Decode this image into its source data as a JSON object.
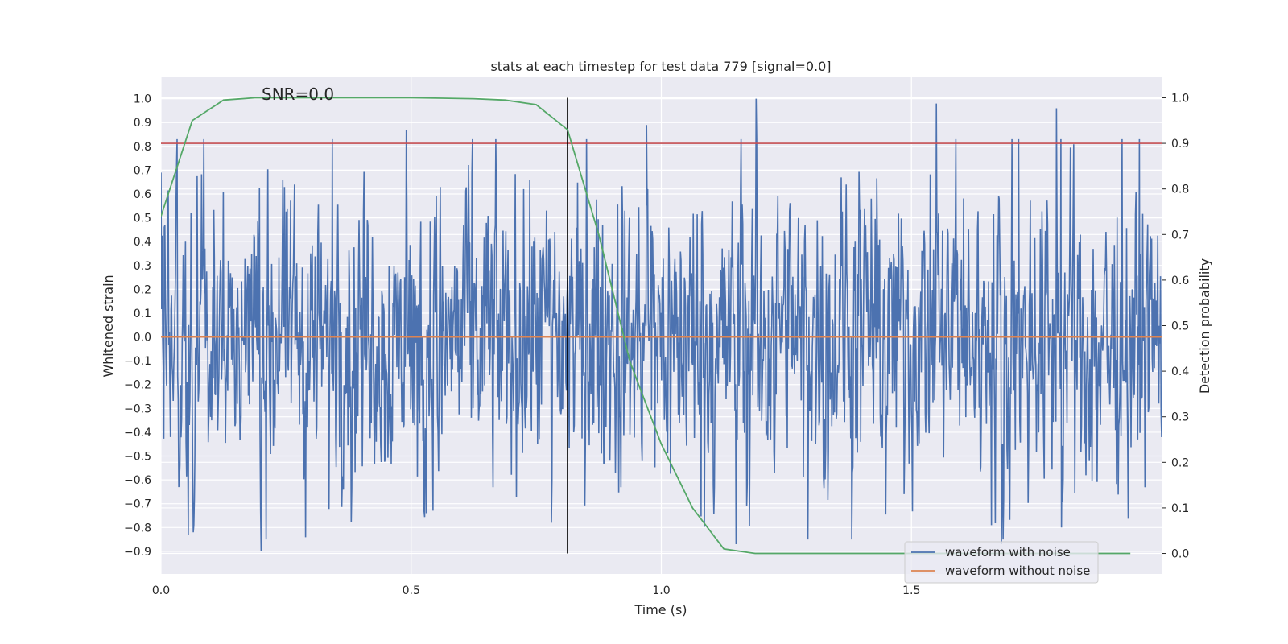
{
  "chart_data": {
    "type": "line",
    "title": "stats at each timestep for test data 779 [signal=0.0]",
    "xlabel": "Time (s)",
    "ylabel_left": "Whitened strain",
    "ylabel_right": "Detection probability",
    "annotation": "SNR=0.0",
    "xlim": [
      0.0,
      2.0
    ],
    "ylim_left": [
      -0.995,
      1.09
    ],
    "ylim_right": [
      -0.045,
      1.045
    ],
    "x_ticks": [
      0.0,
      0.5,
      1.0,
      1.5
    ],
    "x_tick_labels": [
      "0.0",
      "0.5",
      "1.0",
      "1.5"
    ],
    "y_left_ticks": [
      1.0,
      0.9,
      0.8,
      0.7,
      0.6,
      0.5,
      0.4,
      0.3,
      0.2,
      0.1,
      0.0,
      -0.1,
      -0.2,
      -0.3,
      -0.4,
      -0.5,
      -0.6,
      -0.7,
      -0.8,
      -0.9
    ],
    "y_left_tick_labels": [
      "1.0",
      "0.9",
      "0.8",
      "0.7",
      "0.6",
      "0.5",
      "0.4",
      "0.3",
      "0.2",
      "0.1",
      "0.0",
      "−0.1",
      "−0.2",
      "−0.3",
      "−0.4",
      "−0.5",
      "−0.6",
      "−0.7",
      "−0.8",
      "−0.9"
    ],
    "y_right_ticks": [
      1.0,
      0.9,
      0.8,
      0.7,
      0.6,
      0.5,
      0.4,
      0.3,
      0.2,
      0.1,
      0.0
    ],
    "y_right_tick_labels": [
      "1.0",
      "0.9",
      "0.8",
      "0.7",
      "0.6",
      "0.5",
      "0.4",
      "0.3",
      "0.2",
      "0.1",
      "0.0"
    ],
    "grid": true,
    "legend_position": "lower-right",
    "series": [
      {
        "name": "waveform with noise",
        "axis": "left",
        "color": "#4c72b0",
        "kind": "noise",
        "x_range": [
          0.0,
          2.0
        ],
        "amplitude_range": [
          -0.9,
          1.0
        ],
        "peaks": [
          {
            "x": 0.0,
            "y": 0.69
          },
          {
            "x": 0.065,
            "y": -0.82
          },
          {
            "x": 0.06,
            "y": 0.52
          },
          {
            "x": 0.2,
            "y": -0.9
          },
          {
            "x": 0.49,
            "y": 0.87
          },
          {
            "x": 0.53,
            "y": -0.74
          },
          {
            "x": 0.78,
            "y": -0.78
          },
          {
            "x": 0.97,
            "y": 0.89
          },
          {
            "x": 1.15,
            "y": -0.87
          },
          {
            "x": 1.19,
            "y": 1.0
          },
          {
            "x": 1.55,
            "y": 0.98
          },
          {
            "x": 1.68,
            "y": -0.87
          },
          {
            "x": 1.79,
            "y": 0.96
          },
          {
            "x": 1.8,
            "y": -0.8
          }
        ]
      },
      {
        "name": "waveform without noise",
        "axis": "left",
        "color": "#dd8452",
        "x": [
          0.0,
          2.0
        ],
        "y": [
          0.0,
          0.0
        ]
      },
      {
        "name": "",
        "axis": "right",
        "color": "#55a868",
        "x": [
          0.0,
          0.0625,
          0.125,
          0.1875,
          0.25,
          0.3125,
          0.375,
          0.4375,
          0.5,
          0.5625,
          0.625,
          0.6875,
          0.75,
          0.8125,
          0.875,
          0.9375,
          1.0,
          1.0625,
          1.125,
          1.1875,
          1.25,
          1.3125,
          1.375,
          1.4375,
          1.5,
          1.5625,
          1.625,
          1.6875,
          1.75,
          1.8125,
          1.875,
          1.9375
        ],
        "y": [
          0.74,
          0.95,
          0.995,
          1.0,
          1.0,
          1.0,
          1.0,
          1.0,
          1.0,
          0.999,
          0.998,
          0.995,
          0.985,
          0.93,
          0.7,
          0.42,
          0.24,
          0.1,
          0.01,
          0.0,
          0.0,
          0.0,
          0.0,
          0.0,
          0.0,
          0.0,
          0.0,
          0.0,
          0.0,
          0.0,
          0.0,
          0.0
        ]
      }
    ],
    "hlines": [
      {
        "axis": "right",
        "y": 0.9,
        "color": "#c44e52"
      }
    ],
    "vlines": [
      {
        "x": 0.8125,
        "y_range": [
          0.0,
          1.0
        ],
        "axis": "right",
        "color": "#000000"
      }
    ],
    "legend": [
      "waveform with noise",
      "waveform without noise"
    ]
  }
}
